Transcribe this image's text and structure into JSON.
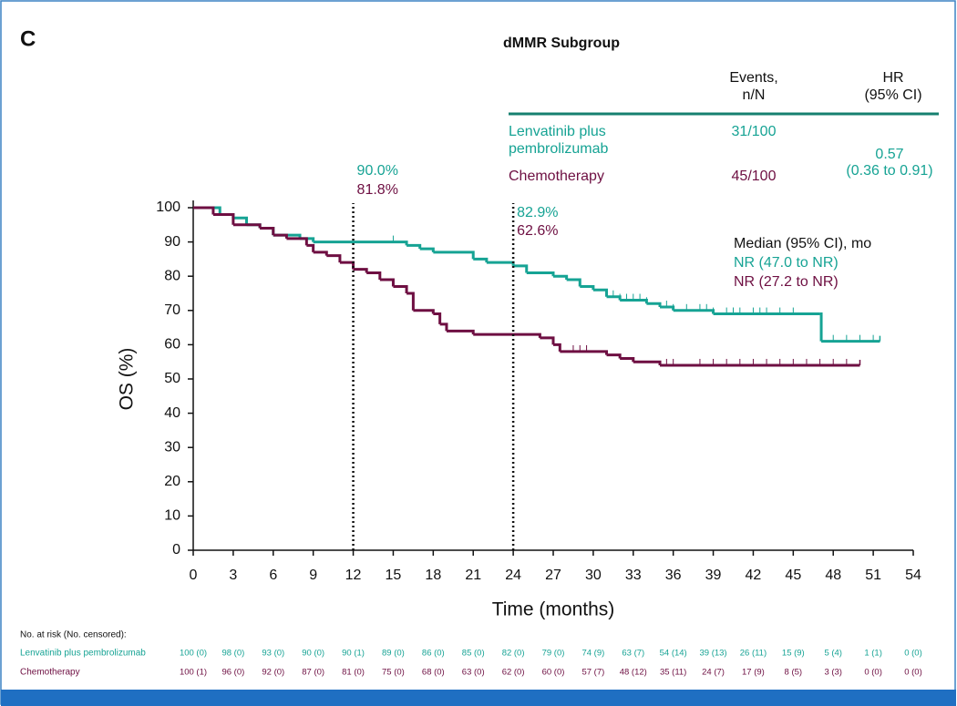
{
  "chart_data": {
    "type": "km",
    "panel_label": "C",
    "title": "dMMR Subgroup",
    "xlabel": "Time (months)",
    "ylabel": "OS (%)",
    "xlim": [
      0,
      54
    ],
    "ylim": [
      0,
      100
    ],
    "xticks": [
      0,
      3,
      6,
      9,
      12,
      15,
      18,
      21,
      24,
      27,
      30,
      33,
      36,
      39,
      42,
      45,
      48,
      51,
      54
    ],
    "yticks": [
      0,
      10,
      20,
      30,
      40,
      50,
      60,
      70,
      80,
      90,
      100
    ],
    "series": [
      {
        "name": "Lenvatinib plus pembrolizumab",
        "color": "#16a394",
        "x": [
          0,
          2,
          3,
          4,
          5,
          6,
          8,
          9,
          16,
          17,
          18,
          21,
          22,
          24,
          25,
          27,
          28,
          29,
          30,
          31,
          32,
          34,
          35,
          36,
          39,
          47,
          47.1,
          51.5
        ],
        "values": [
          100,
          98,
          97,
          95,
          94,
          92,
          91,
          90,
          89,
          88,
          87,
          85,
          84,
          83,
          81,
          80,
          79,
          77,
          76,
          74,
          73,
          72,
          71,
          70,
          69,
          69,
          61,
          61
        ],
        "censored": [
          15,
          31.5,
          32,
          32.5,
          33,
          33.5,
          34,
          35.5,
          36,
          37,
          38,
          38.5,
          39,
          40,
          40.5,
          41,
          42,
          42.5,
          43,
          44,
          45,
          48,
          49,
          50,
          51
        ]
      },
      {
        "name": "Chemotherapy",
        "color": "#6e0f42",
        "x": [
          0,
          1.5,
          3,
          5,
          6,
          7,
          8.5,
          9,
          10,
          11,
          12,
          13,
          14,
          15,
          16,
          16.5,
          18,
          18.5,
          19,
          21,
          26,
          27,
          27.5,
          31,
          32,
          33,
          35,
          50
        ],
        "values": [
          100,
          98,
          95,
          94,
          92,
          91,
          89,
          87,
          86,
          84,
          82,
          81,
          79,
          77,
          75,
          70,
          69,
          66,
          64,
          63,
          62,
          60,
          58,
          57,
          56,
          55,
          54,
          54
        ],
        "censored": [
          28.5,
          29,
          29.5,
          35.5,
          36,
          38,
          39,
          40,
          41,
          42,
          43,
          44,
          45,
          46,
          47,
          48,
          49
        ]
      }
    ],
    "annotations": [
      {
        "x": 12,
        "labels": [
          "90.0%",
          "81.8%"
        ]
      },
      {
        "x": 24,
        "labels": [
          "82.9%",
          "62.6%"
        ]
      }
    ],
    "legend_table": {
      "headers": [
        [
          "Events,",
          "n/N"
        ],
        [
          "HR",
          "(95% CI)"
        ]
      ],
      "rows": [
        {
          "label_lines": [
            "Lenvatinib plus",
            "pembrolizumab"
          ],
          "events": "31/100"
        },
        {
          "label_lines": [
            "Chemotherapy"
          ],
          "events": "45/100"
        }
      ],
      "hr": [
        "0.57",
        "(0.36 to 0.91)"
      ]
    },
    "median": {
      "title": "Median (95% CI), mo",
      "values": [
        "NR (47.0 to NR)",
        "NR (27.2 to NR)"
      ]
    },
    "risk_table": {
      "title": "No. at risk (No. censored):",
      "rows": [
        [
          "100 (0)",
          "98 (0)",
          "93 (0)",
          "90 (0)",
          "90 (1)",
          "89 (0)",
          "86 (0)",
          "85 (0)",
          "82 (0)",
          "79 (0)",
          "74 (9)",
          "63 (7)",
          "54 (14)",
          "39 (13)",
          "26 (11)",
          "15 (9)",
          "5 (4)",
          "1 (1)",
          "0 (0)"
        ],
        [
          "100 (1)",
          "96 (0)",
          "92 (0)",
          "87 (0)",
          "81 (0)",
          "75 (0)",
          "68 (0)",
          "63 (0)",
          "62 (0)",
          "60 (0)",
          "57 (7)",
          "48 (12)",
          "35 (11)",
          "24 (7)",
          "17 (9)",
          "8 (5)",
          "3 (3)",
          "0 (0)",
          "0 (0)"
        ]
      ]
    }
  }
}
